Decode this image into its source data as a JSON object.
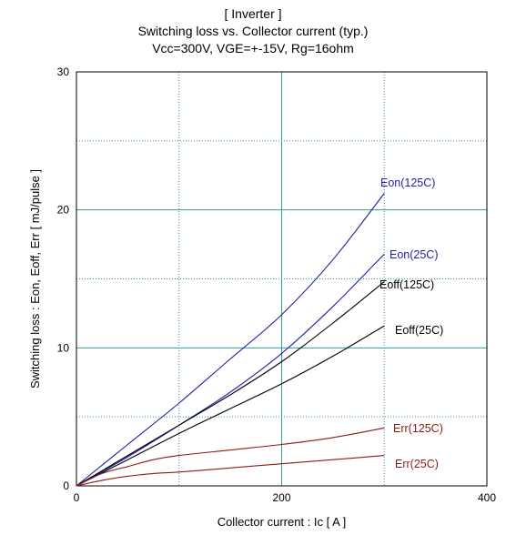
{
  "chart_data": {
    "type": "line",
    "title": "[ Inverter ]",
    "subtitle": "Switching loss  vs.  Collector current  (typ.)",
    "conditions": "Vcc=300V, VGE=+-15V, Rg=16ohm",
    "xlabel": "Collector current  :  Ic  [ A ]",
    "ylabel": "Switching loss  :  Eon, Eoff, Err  [ mJ/pulse ]",
    "xlim": [
      0,
      400
    ],
    "ylim": [
      0,
      30
    ],
    "xticks": [
      0,
      200,
      400
    ],
    "yticks": [
      0,
      10,
      20,
      30
    ],
    "minor_x": [
      100,
      300
    ],
    "minor_y": [
      5,
      15,
      25
    ],
    "grid": true,
    "series": [
      {
        "name": "Eon(125C)",
        "color": "#1f1fa8",
        "label_color": "#1f1fa8",
        "x": [
          0,
          50,
          100,
          150,
          200,
          250,
          300
        ],
        "y": [
          0,
          3.0,
          6.0,
          9.2,
          12.4,
          16.4,
          21.2
        ]
      },
      {
        "name": "Eon(25C)",
        "color": "#1f1fa8",
        "label_color": "#1f1fa8",
        "x": [
          0,
          50,
          100,
          150,
          200,
          250,
          300
        ],
        "y": [
          0,
          2.1,
          4.4,
          6.8,
          9.6,
          13.0,
          16.8
        ]
      },
      {
        "name": "Eoff(125C)",
        "color": "#000000",
        "label_color": "#000000",
        "x": [
          0,
          50,
          100,
          150,
          200,
          250,
          300
        ],
        "y": [
          0,
          2.2,
          4.4,
          6.6,
          9.0,
          11.8,
          14.8
        ]
      },
      {
        "name": "Eoff(25C)",
        "color": "#000000",
        "label_color": "#000000",
        "x": [
          0,
          50,
          100,
          150,
          200,
          250,
          300
        ],
        "y": [
          0,
          1.9,
          3.8,
          5.6,
          7.4,
          9.4,
          11.6
        ]
      },
      {
        "name": "Err(125C)",
        "color": "#8b1a1a",
        "label_color": "#8b1a1a",
        "x": [
          0,
          25,
          50,
          75,
          100,
          150,
          200,
          250,
          300
        ],
        "y": [
          0,
          0.9,
          1.4,
          1.9,
          2.2,
          2.6,
          3.0,
          3.5,
          4.2
        ]
      },
      {
        "name": "Err(25C)",
        "color": "#8b1a1a",
        "label_color": "#8b1a1a",
        "x": [
          0,
          25,
          50,
          75,
          100,
          150,
          200,
          250,
          300
        ],
        "y": [
          0,
          0.4,
          0.7,
          0.9,
          1.0,
          1.3,
          1.6,
          1.9,
          2.2
        ]
      }
    ]
  }
}
